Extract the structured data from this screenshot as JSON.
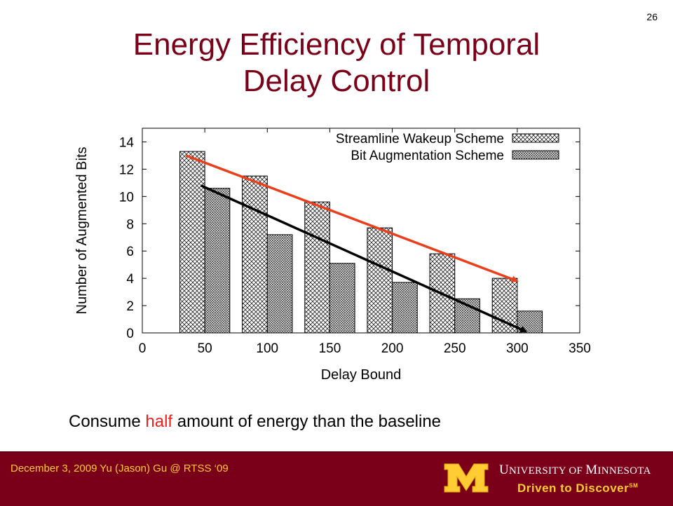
{
  "slide": {
    "number": "26",
    "title_line1": "Energy Efficiency of Temporal",
    "title_line2": "Delay Control",
    "caption_before": "Consume ",
    "caption_highlight": "half",
    "caption_after": " amount of energy than the baseline"
  },
  "footer": {
    "text": "December 3, 2009 Yu (Jason) Gu @ RTSS ‘09",
    "university_u": "U",
    "university_rest1": "NIVERSITY OF ",
    "university_m": "M",
    "university_rest2": "INNESOTA",
    "tagline": "Driven to Discover",
    "tagline_mark": "SM"
  },
  "colors": {
    "title": "#7a0019",
    "footer_bg": "#7a0019",
    "footer_text": "#ffcc33",
    "highlight": "#e8231d",
    "arrow_red": "#e8401d",
    "arrow_black": "#000000"
  },
  "chart_data": {
    "type": "bar",
    "xlabel": "Delay Bound",
    "ylabel": "Number of Augmented Bits",
    "xlim": [
      0,
      350
    ],
    "ylim": [
      0,
      15
    ],
    "xticks": [
      0,
      50,
      100,
      150,
      200,
      250,
      300,
      350
    ],
    "yticks": [
      0,
      2,
      4,
      6,
      8,
      10,
      12,
      14
    ],
    "grid": false,
    "legend_position": "top-right",
    "categories": [
      50,
      100,
      150,
      200,
      250,
      300
    ],
    "series": [
      {
        "name": "Streamline Wakeup Scheme",
        "values": [
          13.3,
          11.5,
          9.6,
          7.7,
          5.8,
          4.0
        ]
      },
      {
        "name": "Bit Augmentation Scheme",
        "values": [
          10.6,
          7.2,
          5.1,
          3.7,
          2.5,
          1.6
        ]
      }
    ],
    "annotations": [
      {
        "type": "arrow",
        "color": "#e8401d",
        "from": [
          35,
          13.0
        ],
        "to": [
          300,
          3.8
        ]
      },
      {
        "type": "arrow",
        "color": "#000000",
        "from": [
          47,
          10.8
        ],
        "to": [
          307,
          0.1
        ]
      }
    ]
  }
}
